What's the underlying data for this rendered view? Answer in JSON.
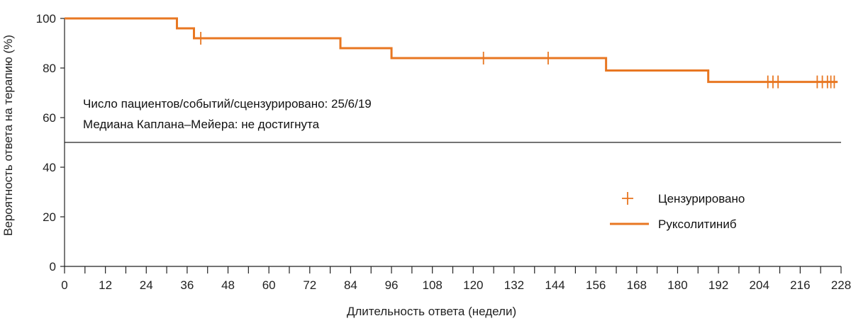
{
  "chart_data": {
    "type": "line",
    "step": true,
    "xlabel": "Длительность ответа (недели)",
    "ylabel": "Вероятность ответа на терапию (%)",
    "xlim": [
      0,
      228
    ],
    "ylim": [
      0,
      100
    ],
    "x_ticks": [
      0,
      12,
      24,
      36,
      48,
      60,
      72,
      84,
      96,
      108,
      120,
      132,
      144,
      156,
      168,
      180,
      192,
      204,
      216,
      228
    ],
    "x_minor_step": 6,
    "y_ticks": [
      0,
      20,
      40,
      60,
      80,
      100
    ],
    "reference_line_y": 50,
    "annotations": [
      "Число пациентов/событий/сцензурировано: 25/6/19",
      "Медиана Каплана–Мейера: не достигнута"
    ],
    "legend": {
      "position": "right",
      "censored_label": "Цензурировано",
      "series_label": "Руксолитиниб"
    },
    "series": [
      {
        "name": "Руксолитиниб",
        "color": "#E87722",
        "steps": [
          {
            "x": 0,
            "y": 100
          },
          {
            "x": 33,
            "y": 96
          },
          {
            "x": 38,
            "y": 92
          },
          {
            "x": 81,
            "y": 88
          },
          {
            "x": 96,
            "y": 84
          },
          {
            "x": 159,
            "y": 79
          },
          {
            "x": 189,
            "y": 74.4
          }
        ],
        "x_end": 227,
        "censored": [
          40,
          123,
          142,
          206.5,
          208,
          209.5,
          221,
          222.5,
          224,
          225,
          226
        ]
      }
    ]
  }
}
